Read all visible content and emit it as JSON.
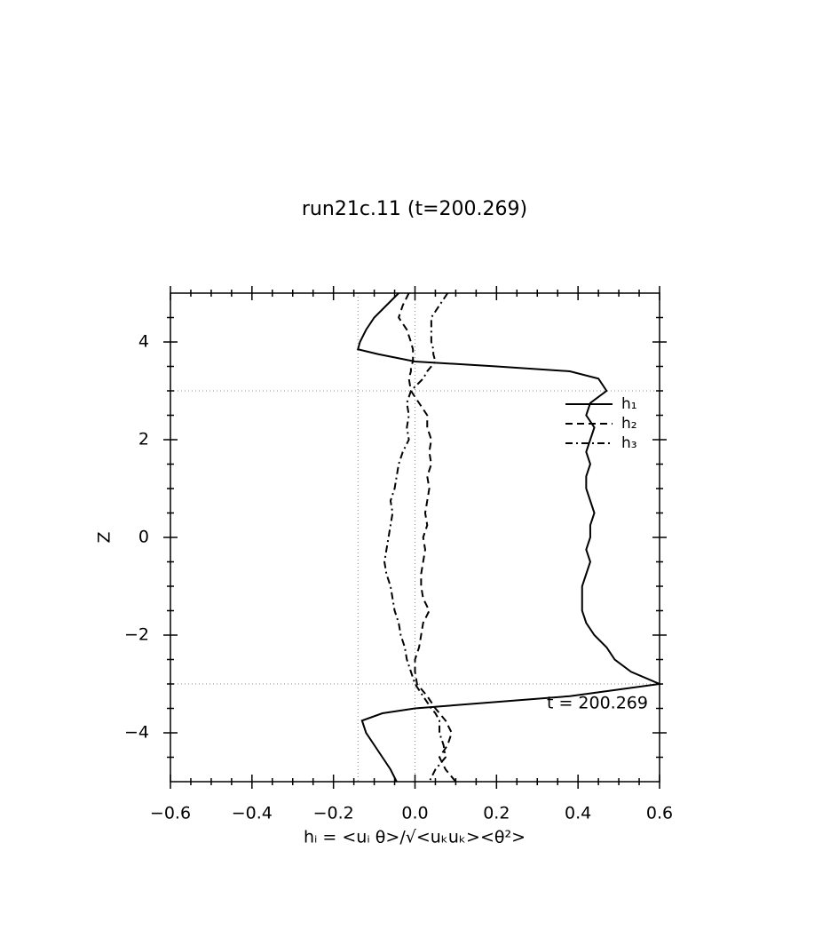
{
  "chart_data": {
    "type": "line",
    "title": "run21c.11 (t=200.269)",
    "xlabel": "hᵢ = <uᵢ θ>/√<uₖuₖ><θ²>",
    "ylabel": "Z",
    "annotation": "t = 200.269",
    "y": [
      5,
      4.75,
      4.5,
      4.25,
      4,
      3.85,
      3.75,
      3.6,
      3.5,
      3.4,
      3.25,
      3,
      2.75,
      2.5,
      2.25,
      2,
      1.75,
      1.5,
      1.25,
      1,
      0.75,
      0.5,
      0.25,
      0,
      -0.25,
      -0.5,
      -0.75,
      -1,
      -1.25,
      -1.5,
      -1.75,
      -2,
      -2.25,
      -2.5,
      -2.75,
      -3,
      -3.25,
      -3.5,
      -3.6,
      -3.75,
      -4,
      -4.25,
      -4.5,
      -4.75,
      -5
    ],
    "series": [
      {
        "name": "h₁",
        "color": "#000000",
        "linestyle": "solid",
        "values": [
          -0.04,
          -0.07,
          -0.1,
          -0.12,
          -0.135,
          -0.14,
          -0.09,
          0.0,
          0.2,
          0.38,
          0.45,
          0.47,
          0.43,
          0.42,
          0.44,
          0.43,
          0.42,
          0.43,
          0.42,
          0.42,
          0.43,
          0.44,
          0.43,
          0.43,
          0.42,
          0.43,
          0.42,
          0.41,
          0.41,
          0.41,
          0.42,
          0.44,
          0.47,
          0.49,
          0.53,
          0.6,
          0.38,
          0.0,
          -0.08,
          -0.13,
          -0.12,
          -0.1,
          -0.08,
          -0.06,
          -0.045
        ]
      },
      {
        "name": "h₂",
        "color": "#000000",
        "linestyle": "dashed",
        "values": [
          -0.015,
          -0.03,
          -0.04,
          -0.02,
          -0.01,
          -0.005,
          -0.005,
          -0.005,
          -0.01,
          -0.01,
          -0.015,
          -0.01,
          0.01,
          0.03,
          0.03,
          0.04,
          0.035,
          0.04,
          0.03,
          0.035,
          0.03,
          0.025,
          0.03,
          0.02,
          0.025,
          0.02,
          0.015,
          0.015,
          0.02,
          0.035,
          0.02,
          0.015,
          0.01,
          0.0,
          0.0,
          0.005,
          0.03,
          0.05,
          0.06,
          0.075,
          0.09,
          0.08,
          0.06,
          0.075,
          0.1
        ]
      },
      {
        "name": "h₃",
        "color": "#000000",
        "linestyle": "dashdot",
        "values": [
          0.08,
          0.06,
          0.04,
          0.04,
          0.04,
          0.045,
          0.045,
          0.05,
          0.04,
          0.03,
          0.02,
          -0.01,
          -0.02,
          -0.015,
          -0.02,
          -0.015,
          -0.03,
          -0.04,
          -0.045,
          -0.05,
          -0.06,
          -0.055,
          -0.06,
          -0.065,
          -0.07,
          -0.075,
          -0.07,
          -0.06,
          -0.055,
          -0.05,
          -0.04,
          -0.035,
          -0.025,
          -0.02,
          -0.01,
          0.0,
          0.02,
          0.04,
          0.05,
          0.06,
          0.06,
          0.07,
          0.075,
          0.05,
          0.035
        ]
      }
    ],
    "xlim": [
      -0.6,
      0.6
    ],
    "xticks": [
      {
        "value": -0.6,
        "label": "−0.6"
      },
      {
        "value": -0.4,
        "label": "−0.4"
      },
      {
        "value": -0.2,
        "label": "−0.2"
      },
      {
        "value": 0,
        "label": "0.0"
      },
      0.2,
      0.4,
      0.6
    ],
    "ylim": [
      -5,
      5
    ],
    "yticks": [
      {
        "value": -4,
        "label": "−4"
      },
      {
        "value": -2,
        "label": "−2"
      },
      0,
      2,
      4
    ],
    "vlines": [
      -0.14,
      0
    ],
    "hlines": [
      3,
      -3
    ],
    "legend": "upper right"
  }
}
